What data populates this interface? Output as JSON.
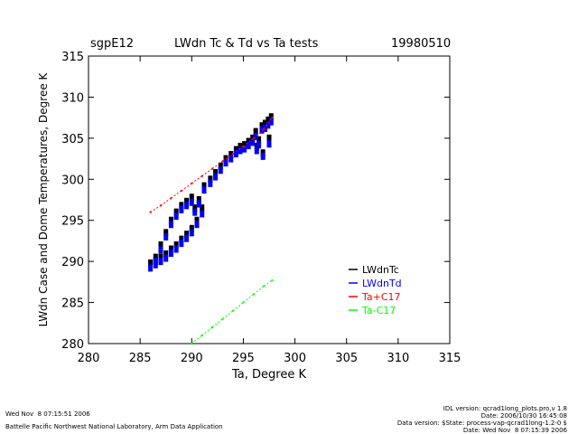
{
  "chart_data": {
    "type": "scatter",
    "title": "LWdn Tc & Td vs Ta tests",
    "site": "sgpE12",
    "date": "19980510",
    "xlabel": "Ta, Degree K",
    "ylabel": "LWdn Case and Dome Temperatures, Degree K",
    "xlim": [
      280,
      315
    ],
    "ylim": [
      280,
      315
    ],
    "xticks": [
      "280",
      "285",
      "290",
      "295",
      "300",
      "305",
      "310",
      "315"
    ],
    "yticks": [
      "280",
      "285",
      "290",
      "295",
      "300",
      "305",
      "310",
      "315"
    ],
    "legend_position": "bottom-right",
    "series": [
      {
        "name": "LWdnTc",
        "color": "#000000",
        "x": [
          286,
          286.5,
          287,
          287.5,
          288,
          288.5,
          289,
          289.5,
          290,
          290.5,
          291,
          286.5,
          287,
          287.5,
          288,
          288.5,
          289,
          289.5,
          290,
          290.3,
          290.7,
          291.2,
          291.8,
          292.3,
          292.8,
          293.3,
          293.8,
          294.3,
          294.7,
          295.1,
          295.5,
          295.9,
          296.2,
          296.5,
          296.8,
          297.1,
          297.4,
          297.7,
          296.3,
          296.9,
          297.5
        ],
        "y": [
          289.8,
          290.1,
          290.5,
          290.9,
          291.5,
          292,
          292.7,
          293.3,
          294,
          295,
          296.5,
          290.5,
          292,
          293.5,
          295,
          296,
          296.8,
          297.3,
          297.8,
          296.5,
          297.5,
          299.2,
          300,
          300.8,
          301.6,
          302.5,
          303,
          303.6,
          304,
          304.2,
          304.6,
          305,
          305.8,
          304.8,
          306.5,
          306.8,
          307.2,
          307.6,
          304,
          303.2,
          305
        ]
      },
      {
        "name": "LWdnTd",
        "color": "#0000ff",
        "x": [
          286,
          286.5,
          287,
          287.5,
          288,
          288.5,
          289,
          289.5,
          290,
          290.5,
          291,
          286.5,
          287,
          287.5,
          288,
          288.5,
          289,
          289.5,
          290,
          290.3,
          290.7,
          291.2,
          291.8,
          292.3,
          292.8,
          293.3,
          293.8,
          294.3,
          294.7,
          295.1,
          295.5,
          295.9,
          296.2,
          296.5,
          296.8,
          297.1,
          297.4,
          297.7,
          296.3,
          296.9,
          297.5
        ],
        "y": [
          289.2,
          289.6,
          290,
          290.4,
          291,
          291.5,
          292.2,
          292.8,
          293.5,
          294.5,
          295.8,
          290,
          291.4,
          293,
          294.5,
          295.5,
          296.3,
          296.8,
          297.2,
          296,
          297,
          298.7,
          299.5,
          300.3,
          301.1,
          302,
          302.5,
          303.1,
          303.5,
          303.7,
          304.1,
          304.5,
          305.2,
          304.2,
          306,
          306.2,
          306.6,
          307,
          303.5,
          302.8,
          304.3
        ]
      },
      {
        "name": "Ta+C17",
        "color": "#ff0000",
        "x": [
          286,
          287,
          288,
          289,
          290,
          291,
          292,
          293,
          294,
          295,
          296,
          297,
          297.8
        ],
        "y": [
          296,
          296.8,
          297.7,
          298.6,
          299.5,
          300.4,
          301.3,
          302.2,
          303.1,
          304,
          305,
          306.1,
          307.5
        ]
      },
      {
        "name": "Ta-C17",
        "color": "#00ff00",
        "x": [
          290,
          291,
          292,
          293,
          294,
          295,
          296,
          297,
          297.8
        ],
        "y": [
          280,
          281,
          282,
          283,
          284,
          285,
          286,
          287,
          287.7
        ]
      }
    ]
  },
  "footer": {
    "timestamp": "Wed Nov  8 07:15:51 2006",
    "institution": "Battelle Pacific Northwest National Laboratory, Arm Data Application",
    "idl_version": "IDL version: qcrad1long_plots.pro,v 1.8",
    "idl_date": "Date: 2006/10/30 16:45:08",
    "data_version": "Data version: $State: process-vap-qcrad1long-1.2-0 $",
    "data_date": "Date: Wed Nov  8 07:15:39 2006"
  }
}
